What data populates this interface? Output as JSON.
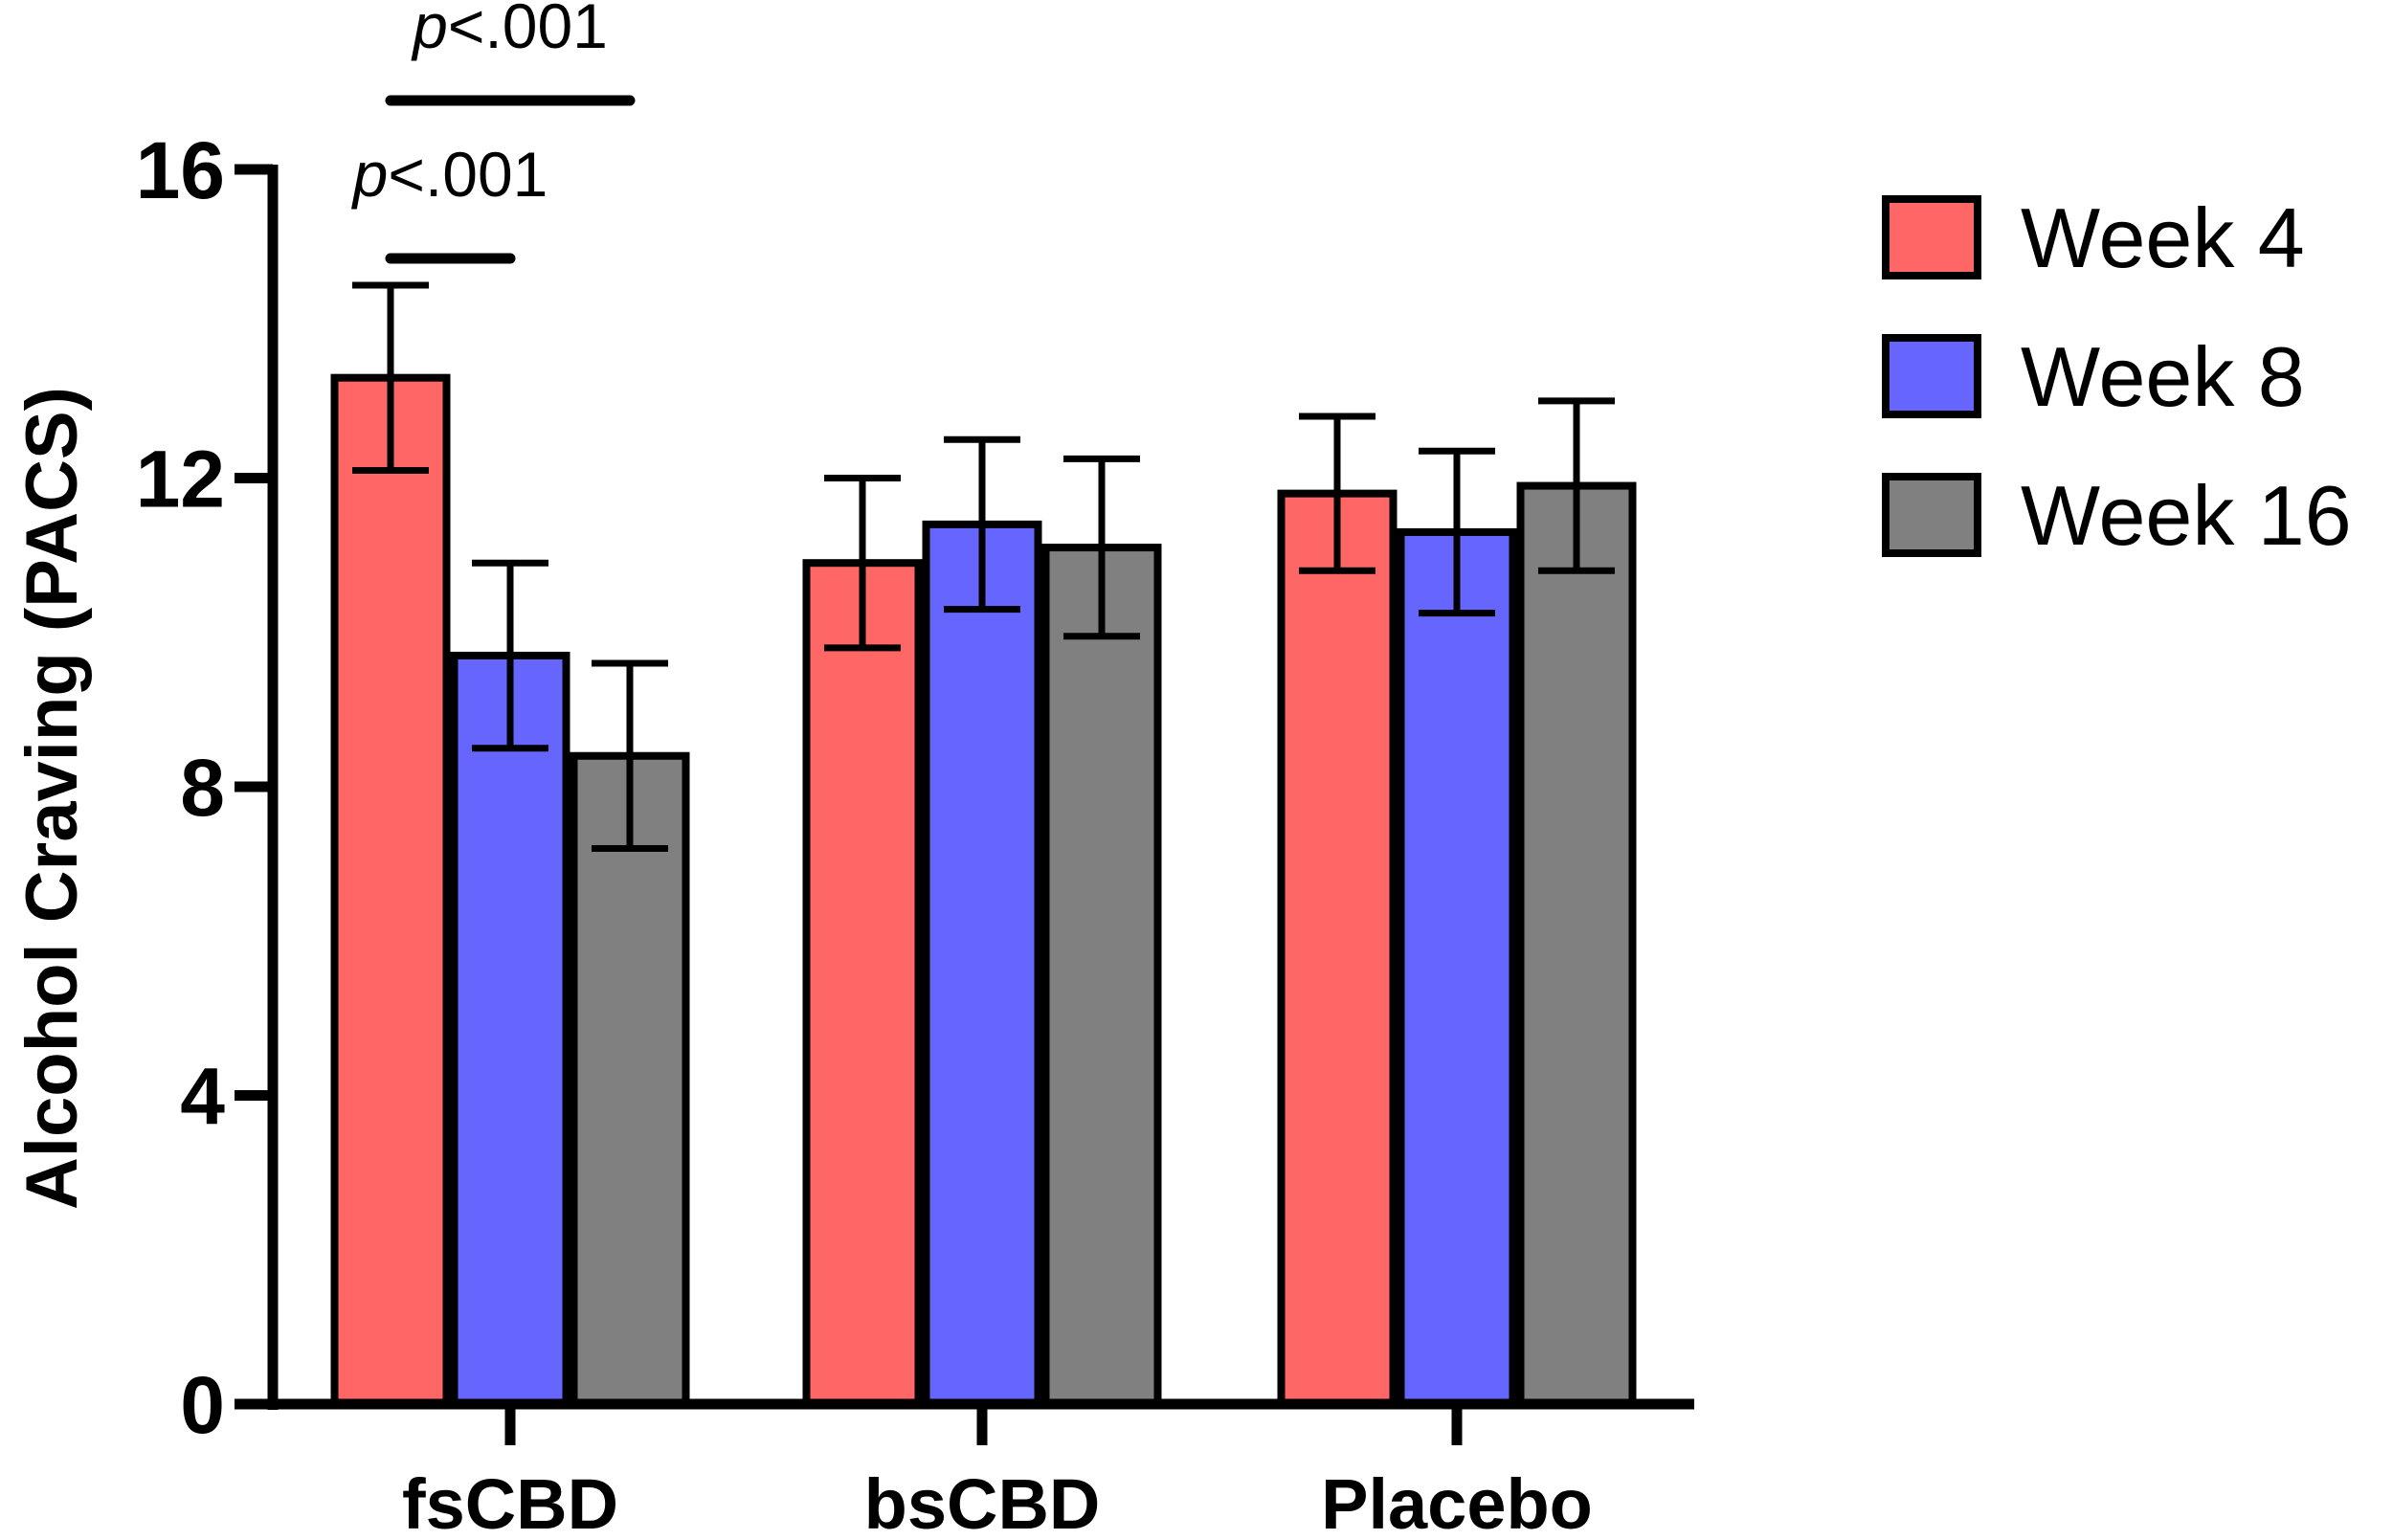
{
  "chart_data": {
    "type": "bar",
    "ylabel": "Alcohol Craving (PACS)",
    "xlabel": "",
    "ylim": [
      0,
      16
    ],
    "yticks": [
      "0",
      "4",
      "8",
      "12",
      "16"
    ],
    "categories": [
      "fsCBD",
      "bsCBD",
      "Placebo"
    ],
    "series": [
      {
        "name": "Week 4",
        "color": "#ff6666",
        "values": [
          13.3,
          10.9,
          11.8
        ],
        "error": [
          1.2,
          1.1,
          1.0
        ]
      },
      {
        "name": "Week 8",
        "color": "#6666ff",
        "values": [
          9.7,
          11.4,
          11.3
        ],
        "error": [
          1.2,
          1.1,
          1.05
        ]
      },
      {
        "name": "Week 16",
        "color": "#808080",
        "values": [
          8.4,
          11.1,
          11.9
        ],
        "error": [
          1.2,
          1.15,
          1.1
        ]
      }
    ],
    "annotations": [
      {
        "p": "p",
        "text": "<.001",
        "from": "Week 4",
        "to": "Week 8",
        "category": "fsCBD"
      },
      {
        "p": "p",
        "text": "<.001",
        "from": "Week 4",
        "to": "Week 16",
        "category": "fsCBD"
      }
    ],
    "legend": "right",
    "grid": false
  }
}
